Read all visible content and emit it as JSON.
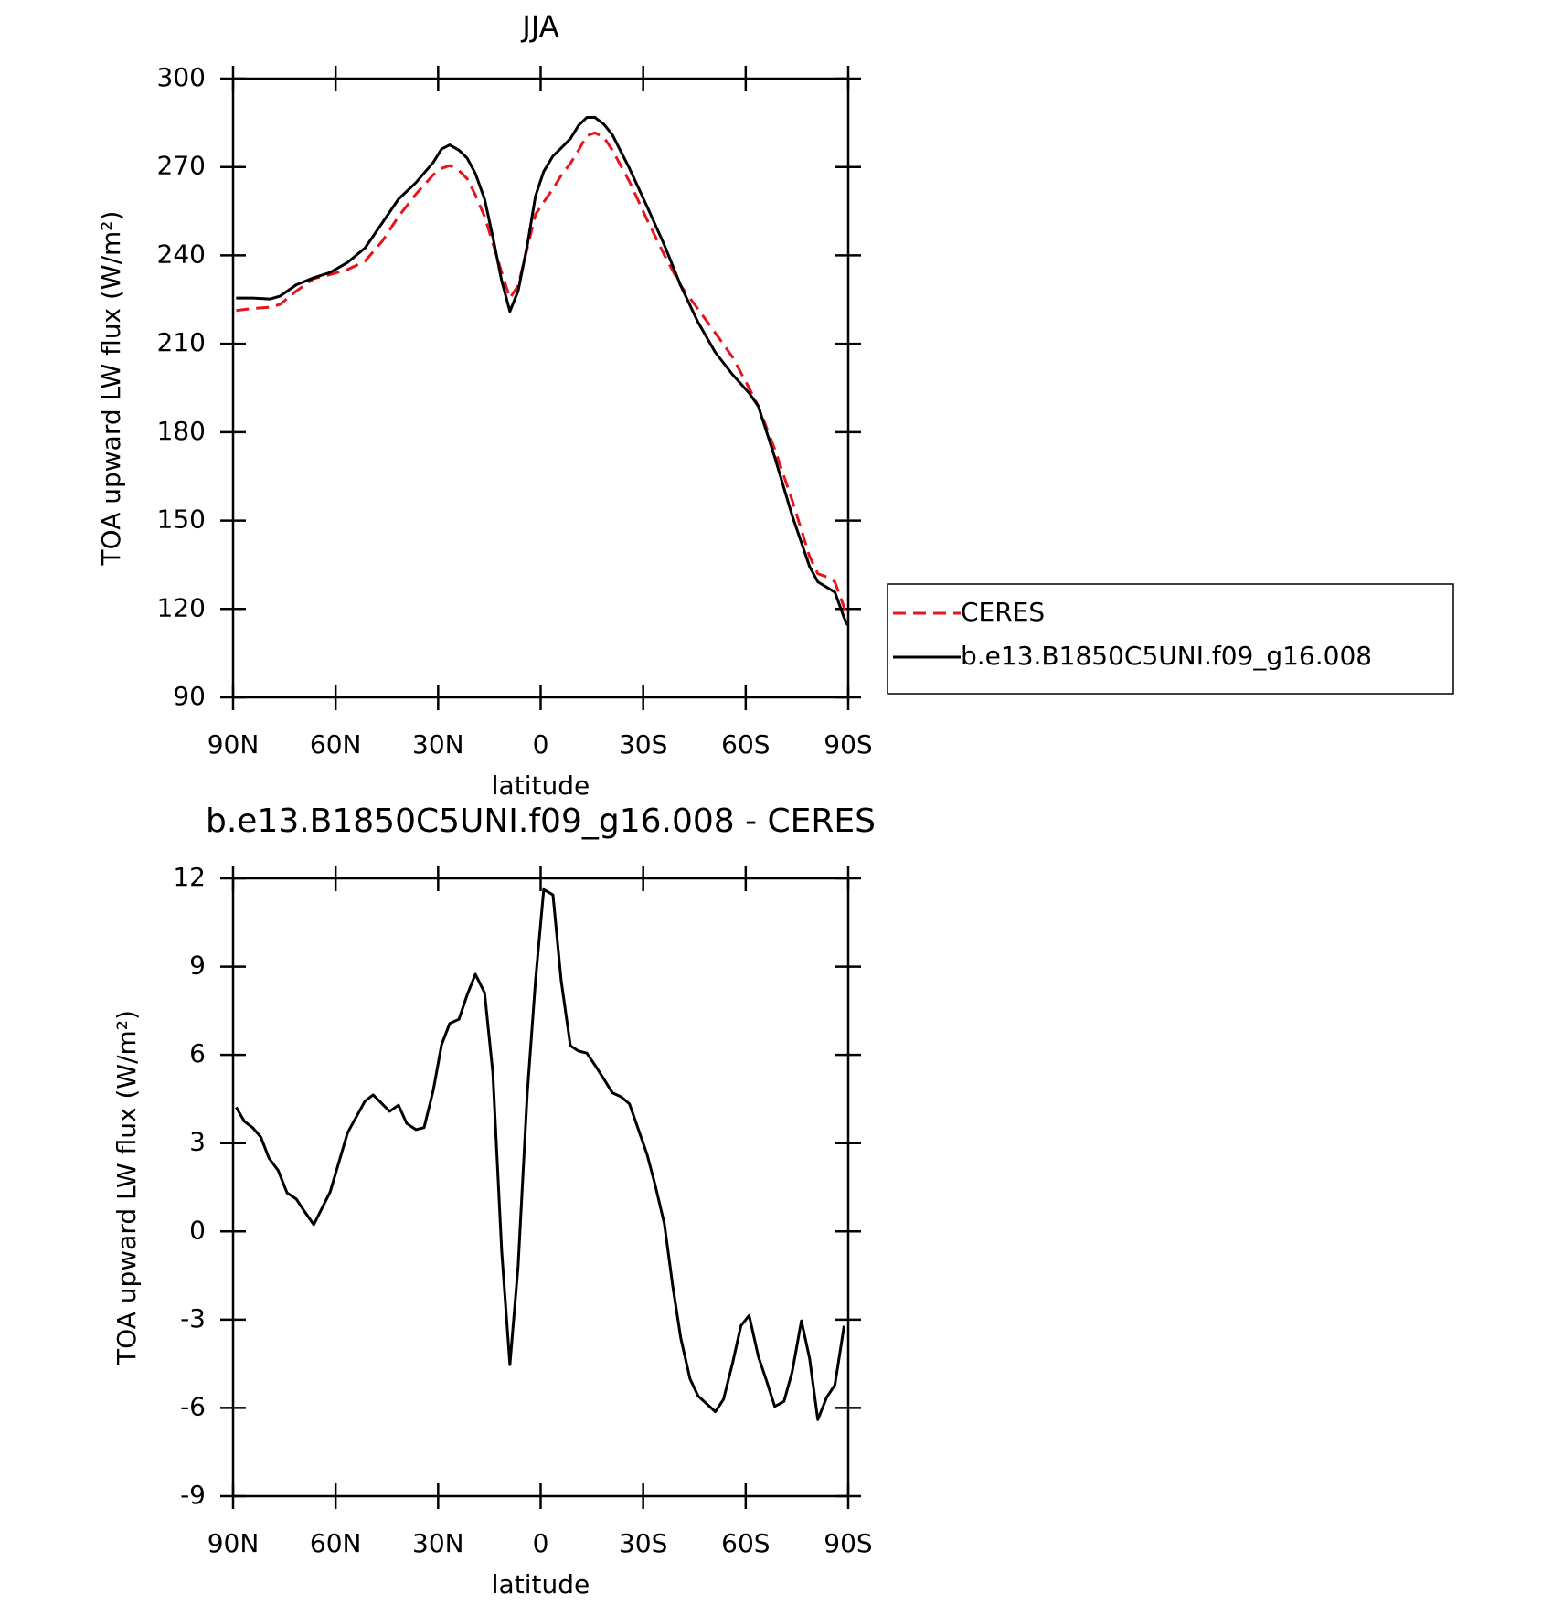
{
  "chart_data": [
    {
      "type": "line",
      "title": "JJA",
      "xlabel": "latitude",
      "ylabel": "TOA upward LW flux (W/m²)",
      "x": [
        89.1,
        84.3,
        79.2,
        76.2,
        71.5,
        66.4,
        61.6,
        56.5,
        51.4,
        46.3,
        41.6,
        36.5,
        31.4,
        29.0,
        26.6,
        23.9,
        21.5,
        19.1,
        16.4,
        14.0,
        11.4,
        9.0,
        6.6,
        3.9,
        1.5,
        -0.9,
        -3.6,
        -6.0,
        -8.7,
        -11.1,
        -13.5,
        -15.9,
        -18.6,
        -21.0,
        -26.0,
        -31.1,
        -36.2,
        -41.0,
        -46.1,
        -51.1,
        -56.2,
        -61.0,
        -63.7,
        -68.5,
        -73.6,
        -78.7,
        -81.1,
        -83.7,
        -86.1,
        -88.8,
        -89.8
      ],
      "series": [
        {
          "name": "CERES",
          "color": "#e8141b",
          "style": "dashed",
          "values": [
            221.3,
            222.0,
            222.4,
            223.4,
            227.9,
            232.1,
            233.5,
            235.2,
            238.0,
            244.9,
            253.2,
            260.8,
            267.4,
            269.5,
            270.5,
            268.8,
            266.0,
            260.5,
            253.2,
            244.2,
            234.2,
            225.5,
            229.7,
            242.5,
            253.9,
            258.1,
            262.6,
            267.1,
            271.2,
            275.7,
            280.6,
            281.6,
            279.9,
            275.7,
            265.0,
            252.2,
            240.1,
            229.7,
            221.7,
            213.7,
            205.4,
            195.0,
            188.8,
            174.2,
            156.9,
            137.8,
            132.0,
            130.9,
            129.2,
            120.5,
            117.0
          ]
        },
        {
          "name": "b.e13.B1850C5UNI.f09_g16.008",
          "color": "#000000",
          "style": "solid",
          "values": [
            225.5,
            225.5,
            225.2,
            226.2,
            230.0,
            232.4,
            234.2,
            237.6,
            242.5,
            251.1,
            259.1,
            264.7,
            271.6,
            276.1,
            277.5,
            275.7,
            273.0,
            267.8,
            259.1,
            246.3,
            231.4,
            221.0,
            227.9,
            243.5,
            260.2,
            268.5,
            273.7,
            276.4,
            279.6,
            284.1,
            286.8,
            286.8,
            284.4,
            280.9,
            269.5,
            256.7,
            243.5,
            229.7,
            217.2,
            207.1,
            199.5,
            193.3,
            188.8,
            171.5,
            151.7,
            134.4,
            129.2,
            127.4,
            125.7,
            117.0,
            114.5
          ]
        }
      ],
      "xlim": [
        90,
        -90
      ],
      "xticks": [
        {
          "value": 90,
          "label": "90N"
        },
        {
          "value": 60,
          "label": "60N"
        },
        {
          "value": 30,
          "label": "30N"
        },
        0,
        {
          "value": -30,
          "label": "30S"
        },
        {
          "value": -60,
          "label": "60S"
        },
        {
          "value": -90,
          "label": "90S"
        }
      ],
      "ylim": [
        90,
        300
      ],
      "yticks": [
        90,
        120,
        150,
        180,
        210,
        240,
        270,
        300
      ],
      "legend": "right"
    },
    {
      "type": "line",
      "title": "b.e13.B1850C5UNI.f09_g16.008 - CERES",
      "xlabel": "latitude",
      "ylabel": "TOA upward LW flux (W/m²)",
      "x": [
        89.1,
        86.7,
        84.3,
        81.9,
        79.5,
        76.8,
        74.2,
        71.5,
        69.1,
        66.4,
        61.6,
        56.5,
        51.4,
        49.0,
        44.2,
        41.6,
        39.2,
        36.5,
        34.1,
        31.4,
        29.0,
        26.6,
        23.9,
        21.5,
        19.1,
        16.4,
        14.0,
        11.4,
        9.0,
        6.6,
        3.9,
        1.5,
        -0.9,
        -3.6,
        -6.0,
        -8.7,
        -11.1,
        -13.5,
        -15.9,
        -18.6,
        -21.0,
        -23.6,
        -26.0,
        -28.4,
        -31.1,
        -33.5,
        -36.2,
        -38.6,
        -41.0,
        -43.7,
        -46.1,
        -48.5,
        -51.1,
        -53.5,
        -56.2,
        -58.6,
        -61.0,
        -63.7,
        -66.1,
        -68.5,
        -71.2,
        -73.6,
        -76.3,
        -78.7,
        -81.1,
        -83.7,
        -86.1,
        -88.8
      ],
      "values": [
        4.22,
        3.74,
        3.53,
        3.21,
        2.49,
        2.07,
        1.31,
        1.1,
        0.68,
        0.23,
        1.34,
        3.35,
        4.43,
        4.64,
        4.08,
        4.29,
        3.67,
        3.46,
        3.53,
        4.81,
        6.34,
        7.07,
        7.21,
        8.04,
        8.74,
        8.11,
        5.4,
        -0.67,
        -4.53,
        -1.19,
        4.71,
        8.53,
        11.62,
        11.44,
        8.53,
        6.31,
        6.13,
        6.06,
        5.65,
        5.16,
        4.71,
        4.57,
        4.33,
        3.53,
        2.63,
        1.58,
        0.26,
        -1.82,
        -3.63,
        -5.01,
        -5.6,
        -5.85,
        -6.13,
        -5.71,
        -4.46,
        -3.21,
        -2.86,
        -4.25,
        -5.08,
        -5.95,
        -5.78,
        -4.78,
        -3.04,
        -4.32,
        -6.4,
        -5.64,
        -5.22,
        -3.21
      ],
      "color": "#000000",
      "xlim": [
        90,
        -90
      ],
      "xticks": [
        {
          "value": 90,
          "label": "90N"
        },
        {
          "value": 60,
          "label": "60N"
        },
        {
          "value": 30,
          "label": "30N"
        },
        0,
        {
          "value": -30,
          "label": "30S"
        },
        {
          "value": -60,
          "label": "60S"
        },
        {
          "value": -90,
          "label": "90S"
        }
      ],
      "ylim": [
        -9,
        12
      ],
      "yticks": [
        -9,
        -6,
        -3,
        0,
        3,
        6,
        9,
        12
      ]
    }
  ]
}
